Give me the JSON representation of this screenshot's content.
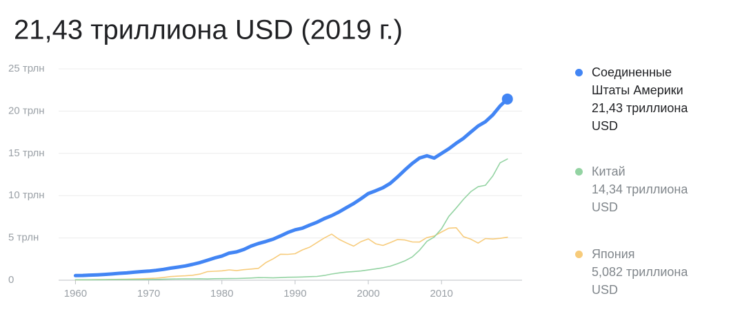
{
  "chart_data": {
    "type": "line",
    "title": "21,43 триллиона USD (2019 г.)",
    "x": [
      1960,
      1961,
      1962,
      1963,
      1964,
      1965,
      1966,
      1967,
      1968,
      1969,
      1970,
      1971,
      1972,
      1973,
      1974,
      1975,
      1976,
      1977,
      1978,
      1979,
      1980,
      1981,
      1982,
      1983,
      1984,
      1985,
      1986,
      1987,
      1988,
      1989,
      1990,
      1991,
      1992,
      1993,
      1994,
      1995,
      1996,
      1997,
      1998,
      1999,
      2000,
      2001,
      2002,
      2003,
      2004,
      2005,
      2006,
      2007,
      2008,
      2009,
      2010,
      2011,
      2012,
      2013,
      2014,
      2015,
      2016,
      2017,
      2018,
      2019
    ],
    "xlim": [
      1957.7,
      2021
    ],
    "xticks": [
      1960,
      1970,
      1980,
      1990,
      2000,
      2010
    ],
    "ylim": [
      0,
      25
    ],
    "yticks": [
      {
        "value": 0,
        "label": "0"
      },
      {
        "value": 5,
        "label": "5 трлн"
      },
      {
        "value": 10,
        "label": "10 трлн"
      },
      {
        "value": 15,
        "label": "15 трлн"
      },
      {
        "value": 20,
        "label": "20 трлн"
      },
      {
        "value": 25,
        "label": "25 трлн"
      }
    ],
    "grid": true,
    "series": [
      {
        "name": "Соединенные Штаты Америки",
        "color": "#4285f4",
        "last_label": "21,43 триллиона USD",
        "values": [
          0.543,
          0.563,
          0.605,
          0.638,
          0.686,
          0.744,
          0.815,
          0.862,
          0.943,
          1.019,
          1.073,
          1.165,
          1.28,
          1.425,
          1.545,
          1.684,
          1.873,
          2.082,
          2.352,
          2.627,
          2.857,
          3.207,
          3.343,
          3.634,
          4.037,
          4.339,
          4.58,
          4.855,
          5.236,
          5.642,
          5.963,
          6.158,
          6.52,
          6.859,
          7.287,
          7.64,
          8.073,
          8.578,
          9.063,
          9.631,
          10.252,
          10.582,
          10.936,
          11.458,
          12.214,
          13.037,
          13.815,
          14.452,
          14.713,
          14.449,
          14.992,
          15.543,
          16.197,
          16.785,
          17.527,
          18.238,
          18.745,
          19.543,
          20.612,
          21.43
        ]
      },
      {
        "name": "Китай",
        "color": "#93d3a2",
        "last_label": "14,34 триллиона USD",
        "values": [
          0.06,
          0.05,
          0.047,
          0.051,
          0.059,
          0.07,
          0.076,
          0.072,
          0.07,
          0.079,
          0.093,
          0.1,
          0.114,
          0.139,
          0.144,
          0.163,
          0.154,
          0.175,
          0.149,
          0.178,
          0.191,
          0.196,
          0.205,
          0.23,
          0.26,
          0.309,
          0.301,
          0.273,
          0.312,
          0.348,
          0.361,
          0.383,
          0.427,
          0.445,
          0.564,
          0.734,
          0.864,
          0.962,
          1.029,
          1.094,
          1.211,
          1.339,
          1.471,
          1.66,
          1.955,
          2.286,
          2.752,
          3.552,
          4.594,
          5.102,
          6.087,
          7.552,
          8.532,
          9.57,
          10.476,
          11.062,
          11.233,
          12.31,
          13.895,
          14.34
        ]
      },
      {
        "name": "Япония",
        "color": "#f7cb7a",
        "last_label": "5,082 триллиона USD",
        "values": [
          0.044,
          0.054,
          0.061,
          0.07,
          0.082,
          0.091,
          0.106,
          0.123,
          0.147,
          0.172,
          0.212,
          0.241,
          0.318,
          0.432,
          0.479,
          0.522,
          0.585,
          0.721,
          1.013,
          1.055,
          1.105,
          1.219,
          1.134,
          1.243,
          1.318,
          1.399,
          2.079,
          2.535,
          3.072,
          3.055,
          3.133,
          3.584,
          3.909,
          4.454,
          4.999,
          5.449,
          4.834,
          4.415,
          4.033,
          4.563,
          4.888,
          4.304,
          4.115,
          4.446,
          4.815,
          4.755,
          4.53,
          4.515,
          5.038,
          5.231,
          5.7,
          6.157,
          6.203,
          5.156,
          4.85,
          4.389,
          4.927,
          4.867,
          4.955,
          5.082
        ]
      }
    ]
  }
}
